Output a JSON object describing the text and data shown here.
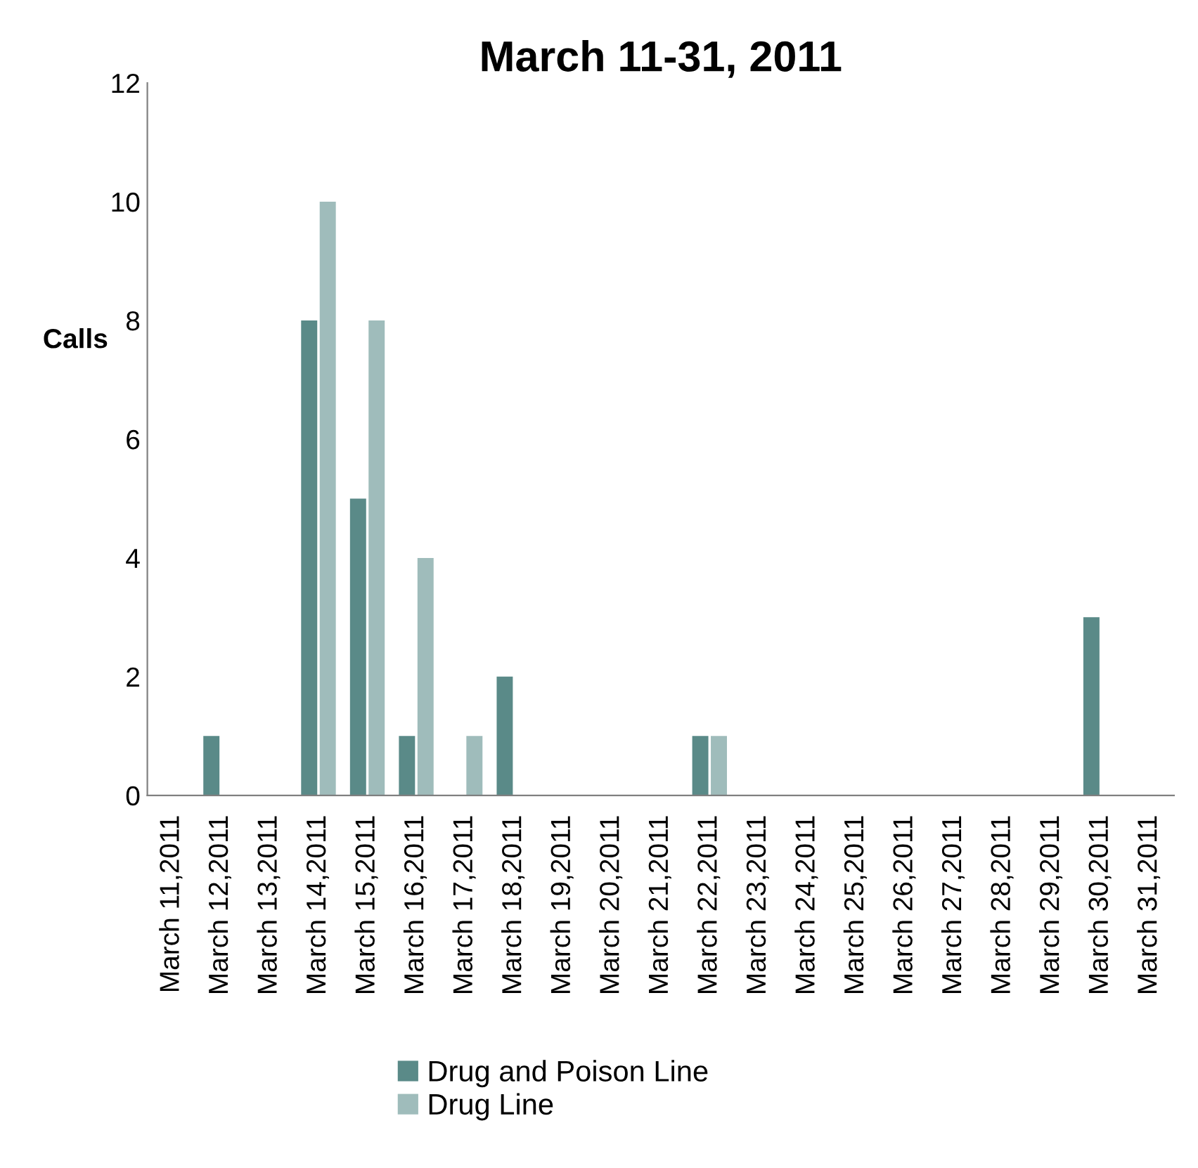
{
  "chart_data": {
    "type": "bar",
    "title": "March 11-31, 2011",
    "ylabel": "Calls",
    "categories": [
      "March 11,2011",
      "March 12,2011",
      "March 13,2011",
      "March 14,2011",
      "March 15,2011",
      "March 16,2011",
      "March 17,2011",
      "March 18,2011",
      "March 19,2011",
      "March 20,2011",
      "March 21,2011",
      "March 22,2011",
      "March 23,2011",
      "March 24,2011",
      "March 25,2011",
      "March 26,2011",
      "March 27,2011",
      "March 28,2011",
      "March 29,2011",
      "March 30,2011",
      "March 31,2011"
    ],
    "series": [
      {
        "name": "Drug and Poison Line",
        "color": "#5a8a88",
        "values": [
          0,
          1,
          0,
          8,
          5,
          1,
          0,
          2,
          0,
          0,
          0,
          1,
          0,
          0,
          0,
          0,
          0,
          0,
          0,
          3,
          0
        ]
      },
      {
        "name": "Drug Line",
        "color": "#9fbcbb",
        "values": [
          0,
          0,
          0,
          10,
          8,
          4,
          1,
          0,
          0,
          0,
          0,
          1,
          0,
          0,
          0,
          0,
          0,
          0,
          0,
          0,
          0
        ]
      }
    ],
    "ylim": [
      0,
      12
    ],
    "yticks": [
      0,
      2,
      4,
      6,
      8,
      10,
      12
    ],
    "grid": false,
    "legend": "bottom"
  }
}
